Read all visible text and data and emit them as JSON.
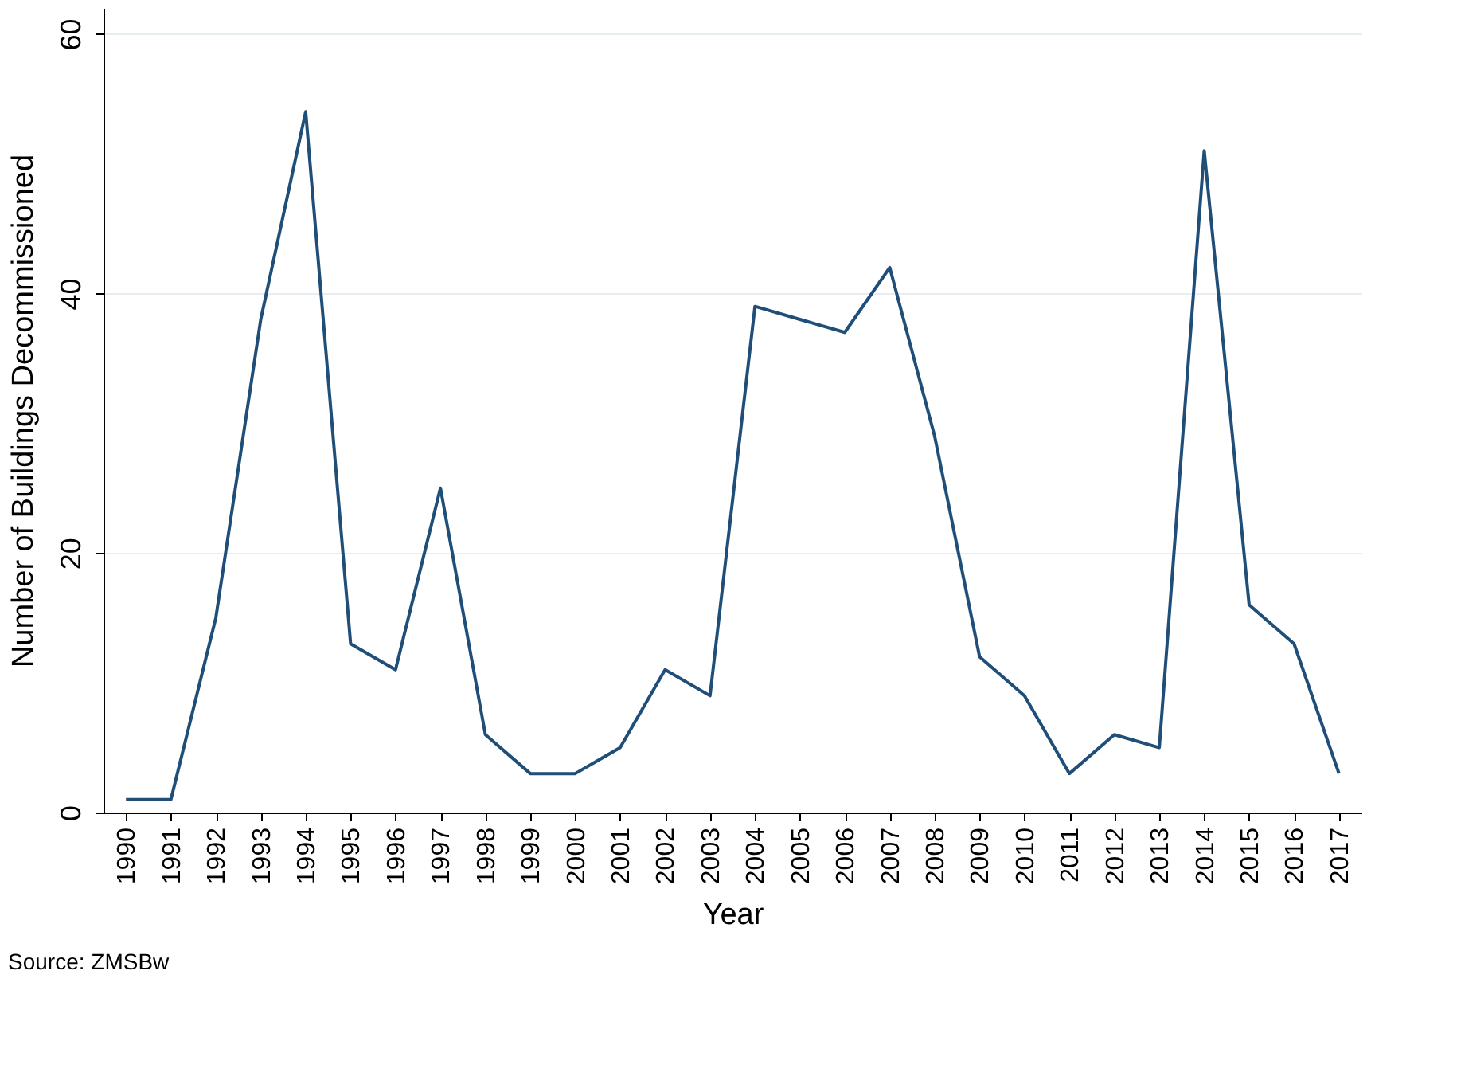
{
  "chart_data": {
    "type": "line",
    "xlabel": "Year",
    "ylabel": "Number of Buildings Decommissioned",
    "categories": [
      "1990",
      "1991",
      "1992",
      "1993",
      "1994",
      "1995",
      "1996",
      "1997",
      "1998",
      "1999",
      "2000",
      "2001",
      "2002",
      "2003",
      "2004",
      "2005",
      "2006",
      "2007",
      "2008",
      "2009",
      "2010",
      "2011",
      "2012",
      "2013",
      "2014",
      "2015",
      "2016",
      "2017"
    ],
    "series": [
      {
        "color": "#1f4e79",
        "values": [
          1,
          1,
          15,
          38,
          54,
          13,
          11,
          25,
          6,
          3,
          3,
          5,
          11,
          9,
          39,
          38,
          37,
          42,
          29,
          12,
          9,
          3,
          6,
          5,
          51,
          16,
          13,
          3
        ]
      }
    ],
    "ylim": [
      0,
      62
    ],
    "yticks": [
      0,
      20,
      40,
      60
    ],
    "grid": "y",
    "marker": "none",
    "line_style": "solid",
    "annotations": [
      "Source: ZMSBw"
    ]
  }
}
